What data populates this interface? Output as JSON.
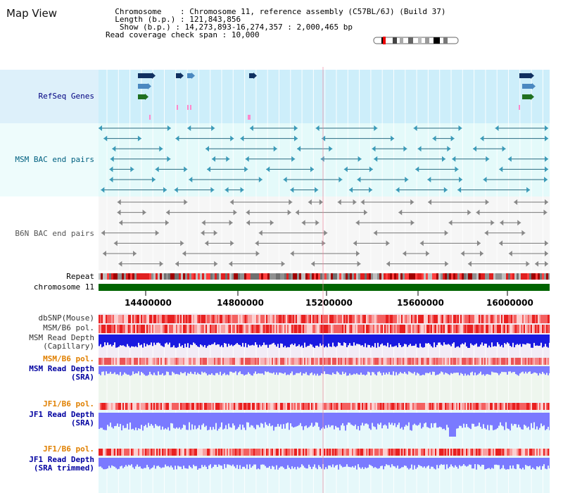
{
  "app": {
    "title": "Map View"
  },
  "info": {
    "chromosome_label": "Chromosome",
    "chromosome_value": "Chromosome 11, reference assembly (C57BL/6J) (Build 37)",
    "length_label": "Length (b.p.)",
    "length_value": "121,843,856",
    "show_label": "Show (b.p.)",
    "show_value": "14,273,893-16,274,357 : 2,000,465 bp",
    "span_label": "Read coverage check span",
    "span_value": "10,000"
  },
  "tracks": {
    "refseq": {
      "label": "RefSeq Genes",
      "color": "#000080"
    },
    "msm_bac": {
      "label": "MSM BAC end pairs",
      "color": "#006080"
    },
    "b6n_bac": {
      "label": "B6N BAC end pairs",
      "color": "#555555"
    },
    "repeat": {
      "label": "Repeat"
    },
    "chromosome": {
      "label": "chromosome 11",
      "color": "#006400"
    }
  },
  "axis": {
    "ticks": [
      "14400000",
      "14800000",
      "15200000",
      "15600000",
      "16000000"
    ]
  },
  "coverage": [
    {
      "label1": "dbSNP(Mouse)",
      "label2": "",
      "color": "#333333"
    },
    {
      "label1": "MSM/B6 pol.",
      "label2": "",
      "color": "#333333"
    },
    {
      "label1": "MSM Read Depth",
      "label2": "(Capillary)",
      "color": "#333333"
    },
    {
      "label1": "MSM/B6 pol.",
      "label2": "",
      "color": "#e08000"
    },
    {
      "label1": "MSM Read Depth",
      "label2": "(SRA)",
      "color": "#0000a0"
    },
    {
      "label1": "JF1/B6 pol.",
      "label2": "",
      "color": "#e08000"
    },
    {
      "label1": "JF1 Read Depth",
      "label2": "(SRA)",
      "color": "#0000a0"
    },
    {
      "label1": "JF1/B6 pol.",
      "label2": "",
      "color": "#e08000"
    },
    {
      "label1": "JF1 Read Depth",
      "label2": "(SRA trimmed)",
      "color": "#0000a0"
    }
  ]
}
